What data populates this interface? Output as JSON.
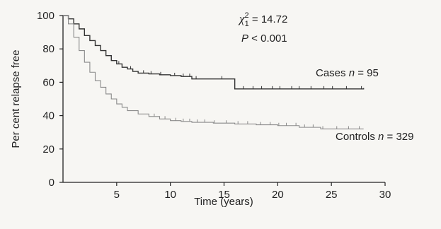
{
  "chart_data": {
    "type": "line",
    "xlabel": "Time (years)",
    "ylabel": "Per cent relapse free",
    "xlim": [
      0,
      30
    ],
    "ylim": [
      0,
      100
    ],
    "x_ticks": [
      5,
      10,
      15,
      20,
      25,
      30
    ],
    "y_ticks": [
      0,
      20,
      40,
      60,
      80,
      100
    ],
    "grid": false,
    "annotation": {
      "chi_symbol": "χ",
      "chi_superscript": "2",
      "chi_subscript": "1",
      "chi_value": " = 14.72",
      "p_symbol": "P",
      "p_value": " < 0.001"
    },
    "series": [
      {
        "name": "Cases",
        "label_prefix": "Cases ",
        "n_symbol": "n",
        "n_value": " = 95",
        "color": "#333333",
        "step": true,
        "points": [
          [
            0,
            100
          ],
          [
            0.5,
            98
          ],
          [
            1,
            95
          ],
          [
            1.5,
            92
          ],
          [
            2,
            88
          ],
          [
            2.5,
            85
          ],
          [
            3,
            82
          ],
          [
            3.5,
            79
          ],
          [
            4,
            76
          ],
          [
            4.5,
            73
          ],
          [
            5,
            71
          ],
          [
            5.5,
            69
          ],
          [
            6,
            68
          ],
          [
            6.5,
            66.5
          ],
          [
            7,
            65.5
          ],
          [
            8,
            65
          ],
          [
            9,
            64.5
          ],
          [
            10,
            64
          ],
          [
            11,
            63.5
          ],
          [
            12,
            62
          ],
          [
            15,
            62
          ],
          [
            16,
            56
          ],
          [
            28,
            56.5
          ]
        ],
        "censored": [
          5.2,
          6.3,
          7.5,
          8.2,
          9.1,
          10.4,
          11.2,
          11.8,
          12.4,
          14.8,
          16.8,
          17.7,
          18.5,
          19.5,
          20.2,
          21.3,
          22.0,
          23.1,
          24.3,
          25.1,
          26.4,
          27.8
        ]
      },
      {
        "name": "Controls",
        "label_prefix": "Controls ",
        "n_symbol": "n",
        "n_value": " = 329",
        "color": "#8a8a8a",
        "step": true,
        "points": [
          [
            0,
            100
          ],
          [
            0.5,
            95
          ],
          [
            1,
            87
          ],
          [
            1.5,
            79
          ],
          [
            2,
            72
          ],
          [
            2.5,
            66
          ],
          [
            3,
            61
          ],
          [
            3.5,
            57
          ],
          [
            4,
            53
          ],
          [
            4.5,
            50
          ],
          [
            5,
            47
          ],
          [
            5.5,
            45
          ],
          [
            6,
            43
          ],
          [
            7,
            41
          ],
          [
            8,
            39.5
          ],
          [
            9,
            38
          ],
          [
            10,
            37
          ],
          [
            11,
            36.5
          ],
          [
            12,
            36
          ],
          [
            14,
            35.5
          ],
          [
            16,
            35
          ],
          [
            18,
            34.5
          ],
          [
            20,
            34
          ],
          [
            22,
            33
          ],
          [
            24,
            32
          ],
          [
            28,
            32
          ]
        ],
        "censored": [
          8.5,
          9.5,
          10.5,
          11.2,
          11.8,
          12.5,
          13.2,
          14.1,
          15.2,
          16.3,
          17.2,
          18.4,
          19.3,
          20.1,
          20.8,
          21.7,
          22.5,
          23.3,
          24.2,
          25.5,
          26.6,
          27.6
        ]
      }
    ]
  }
}
